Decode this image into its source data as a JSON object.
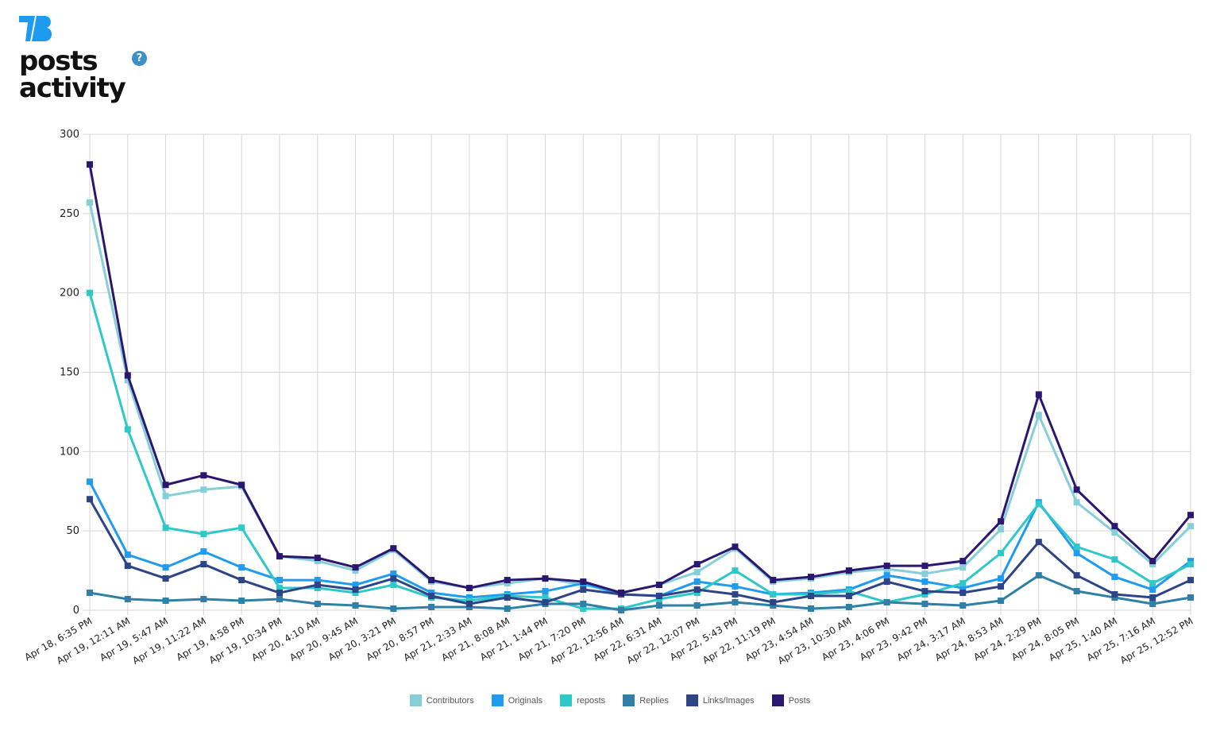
{
  "header": {
    "logo_text": "TB",
    "title_line1": "posts",
    "title_line2": "activity",
    "help_icon": "?",
    "help_color": "#3d8fc9",
    "logo_color": "#1d9bf0"
  },
  "chart_data": {
    "type": "line",
    "title": "posts activity",
    "xlabel": "",
    "ylabel": "",
    "ylim": [
      0,
      300
    ],
    "yticks": [
      0,
      50,
      100,
      150,
      200,
      250,
      300
    ],
    "grid": true,
    "legend_position": "bottom",
    "categories": [
      "Apr 18, 6:35 PM",
      "Apr 19, 12:11 AM",
      "Apr 19, 5:47 AM",
      "Apr 19, 11:22 AM",
      "Apr 19, 4:58 PM",
      "Apr 19, 10:34 PM",
      "Apr 20, 4:10 AM",
      "Apr 20, 9:45 AM",
      "Apr 20, 3:21 PM",
      "Apr 20, 8:57 PM",
      "Apr 21, 2:33 AM",
      "Apr 21, 8:08 AM",
      "Apr 21, 1:44 PM",
      "Apr 21, 7:20 PM",
      "Apr 22, 12:56 AM",
      "Apr 22, 6:31 AM",
      "Apr 22, 12:07 PM",
      "Apr 22, 5:43 PM",
      "Apr 22, 11:19 PM",
      "Apr 23, 4:54 AM",
      "Apr 23, 10:30 AM",
      "Apr 23, 4:06 PM",
      "Apr 23, 9:42 PM",
      "Apr 24, 3:17 AM",
      "Apr 24, 8:53 AM",
      "Apr 24, 2:29 PM",
      "Apr 24, 8:05 PM",
      "Apr 25, 1:40 AM",
      "Apr 25, 7:16 AM",
      "Apr 25, 12:52 PM"
    ],
    "series": [
      {
        "name": "Contributors",
        "color": "#86cfd9",
        "values": [
          257,
          145,
          72,
          76,
          78,
          34,
          31,
          25,
          38,
          18,
          14,
          17,
          20,
          16,
          11,
          16,
          24,
          39,
          18,
          20,
          24,
          26,
          23,
          27,
          51,
          123,
          68,
          49,
          29,
          53
        ]
      },
      {
        "name": "Originals",
        "color": "#1f9bf0",
        "values": [
          81,
          35,
          27,
          37,
          27,
          19,
          19,
          16,
          23,
          11,
          8,
          10,
          12,
          17,
          10,
          9,
          18,
          15,
          10,
          11,
          13,
          22,
          18,
          14,
          20,
          68,
          36,
          21,
          13,
          31
        ]
      },
      {
        "name": "reposts",
        "color": "#2ec8c8",
        "values": [
          200,
          114,
          52,
          48,
          52,
          14,
          14,
          11,
          16,
          8,
          6,
          9,
          8,
          1,
          1,
          7,
          11,
          25,
          10,
          10,
          12,
          5,
          10,
          17,
          36,
          67,
          40,
          32,
          17,
          29
        ]
      },
      {
        "name": "Replies",
        "color": "#2f7fa6",
        "values": [
          11,
          7,
          6,
          7,
          6,
          7,
          4,
          3,
          1,
          2,
          2,
          1,
          4,
          4,
          0,
          3,
          3,
          5,
          3,
          1,
          2,
          5,
          4,
          3,
          6,
          22,
          12,
          8,
          4,
          8
        ]
      },
      {
        "name": "Links/Images",
        "color": "#2d4486",
        "values": [
          70,
          28,
          20,
          29,
          19,
          11,
          16,
          13,
          20,
          9,
          4,
          8,
          5,
          13,
          10,
          9,
          13,
          10,
          5,
          9,
          9,
          18,
          12,
          11,
          15,
          43,
          22,
          10,
          8,
          19
        ]
      },
      {
        "name": "Posts",
        "color": "#2b1670",
        "values": [
          281,
          148,
          79,
          85,
          79,
          34,
          33,
          27,
          39,
          19,
          14,
          19,
          20,
          18,
          11,
          16,
          29,
          40,
          19,
          21,
          25,
          28,
          28,
          31,
          56,
          136,
          76,
          53,
          31,
          60
        ]
      }
    ]
  },
  "legend": {
    "items": [
      {
        "label": "Contributors",
        "color": "#86cfd9"
      },
      {
        "label": "Originals",
        "color": "#1f9bf0"
      },
      {
        "label": "reposts",
        "color": "#2ec8c8"
      },
      {
        "label": "Replies",
        "color": "#2f7fa6"
      },
      {
        "label": "Links/Images",
        "color": "#2d4486"
      },
      {
        "label": "Posts",
        "color": "#2b1670"
      }
    ]
  }
}
